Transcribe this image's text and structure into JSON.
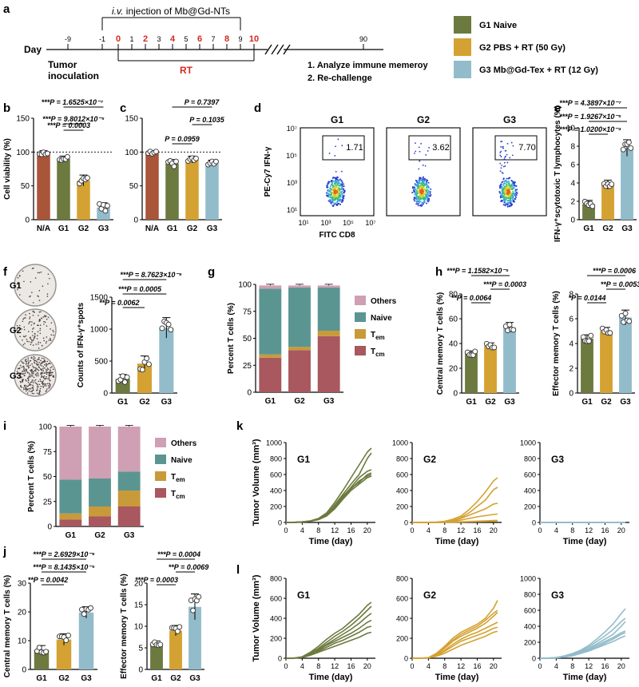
{
  "colors": {
    "g1": "#6c7a3f",
    "g2": "#d4a232",
    "g3": "#93bccb",
    "na": "#a8553a",
    "others": "#cf9fb3",
    "naive": "#5b9591",
    "tem": "#c89a3a",
    "tcm": "#a8585e",
    "red": "#d42a20"
  },
  "panel_a": {
    "letter": "a",
    "day_label": "Day",
    "inj_italic": "i.v.",
    "inj_text": " injection of Mb@Gd-NTs",
    "rt_label": "RT",
    "days": [
      {
        "label": "-9",
        "red": false
      },
      {
        "label": "-1",
        "red": false
      },
      {
        "label": "0",
        "red": true
      },
      {
        "label": "1",
        "red": false
      },
      {
        "label": "2",
        "red": true
      },
      {
        "label": "3",
        "red": false
      },
      {
        "label": "4",
        "red": true
      },
      {
        "label": "5",
        "red": false
      },
      {
        "label": "6",
        "red": true
      },
      {
        "label": "7",
        "red": false
      },
      {
        "label": "8",
        "red": true
      },
      {
        "label": "9",
        "red": false
      },
      {
        "label": "10",
        "red": true
      },
      {
        "label": "90",
        "red": false
      }
    ],
    "tumor_line1": "Tumor",
    "tumor_line2": "inoculation",
    "step1": "1. Analyze immune memeroy",
    "step2": "2. Re-challenge"
  },
  "legend": [
    {
      "label": "G1  Naive",
      "color": "#6c7a3f"
    },
    {
      "label": "G2  PBS + RT (50 Gy)",
      "color": "#d4a232"
    },
    {
      "label": "G3  Mb@Gd-Tex + RT (12 Gy)",
      "color": "#93bccb"
    }
  ],
  "flow_d": {
    "letter": "d",
    "ylabel": "PE-Cy7 IFN-γ",
    "xlabel": "FITC CD8",
    "yticks": [
      "10⁷",
      "10⁵",
      "10³",
      "10¹"
    ],
    "xticks": [
      "10¹",
      "10³",
      "10⁵",
      "10⁷"
    ],
    "plots": [
      {
        "name": "G1",
        "value": "1.71"
      },
      {
        "name": "G2",
        "value": "3.62"
      },
      {
        "name": "G3",
        "value": "7.70"
      }
    ]
  },
  "elispot_f": {
    "labels": [
      "G1",
      "G2",
      "G3"
    ]
  },
  "chart_data": [
    {
      "id": "b",
      "type": "bar",
      "ylabel": "Cell viability (%)",
      "categories": [
        "N/A",
        "G1",
        "G2",
        "G3"
      ],
      "values": [
        99,
        90,
        58,
        18
      ],
      "errors": [
        3,
        4,
        8,
        7
      ],
      "ylim": [
        0,
        150
      ],
      "yticks": [
        0,
        50,
        100,
        150
      ],
      "reference_line": 100,
      "stats": [
        "***P = 1.6525×10⁻⁷",
        "***P = 9.8012×10⁻⁵",
        "***P = 0.0003"
      ]
    },
    {
      "id": "c",
      "type": "bar",
      "ylabel": "",
      "categories": [
        "N/A",
        "G1",
        "G2",
        "G3"
      ],
      "values": [
        99,
        83,
        89,
        84
      ],
      "errors": [
        3,
        6,
        5,
        4
      ],
      "ylim": [
        0,
        150
      ],
      "yticks": [
        0,
        50,
        100,
        150
      ],
      "reference_line": 100,
      "stats": [
        "P = 0.7397",
        "P = 0.1035",
        "P = 0.0959"
      ]
    },
    {
      "id": "e",
      "type": "bar",
      "ylabel": "IFN-γ⁺scytotoxic T lymphocytes (%)",
      "categories": [
        "G1",
        "G2",
        "G3"
      ],
      "values": [
        1.7,
        3.8,
        7.8
      ],
      "errors": [
        0.4,
        0.5,
        0.9
      ],
      "ylim": [
        0,
        10
      ],
      "yticks": [
        0,
        2,
        4,
        6,
        8,
        10
      ],
      "stats": [
        "***P = 4.3897×10⁻⁷",
        "***P = 1.9267×10⁻⁵",
        "***P = 1.0200×10⁻⁴"
      ]
    },
    {
      "id": "f",
      "type": "bar",
      "ylabel": "Counts of IFN-γ⁺spots",
      "categories": [
        "G1",
        "G2",
        "G3"
      ],
      "values": [
        220,
        460,
        1020
      ],
      "errors": [
        70,
        120,
        160
      ],
      "ylim": [
        0,
        1500
      ],
      "yticks": [
        0,
        500,
        1000,
        1500
      ],
      "stats": [
        "***P = 8.7623×10⁻⁶",
        "***P = 0.0005",
        "**P = 0.0062"
      ]
    },
    {
      "id": "g",
      "type": "stacked_bar",
      "ylabel": "Percent T cells (%)",
      "categories": [
        "G1",
        "G2",
        "G3"
      ],
      "ylim": [
        0,
        100
      ],
      "yticks": [
        0,
        25,
        50,
        75,
        100
      ],
      "series": [
        {
          "name": "Tcm",
          "values": [
            32,
            39,
            52
          ]
        },
        {
          "name": "Tem",
          "values": [
            3,
            3,
            5
          ]
        },
        {
          "name": "Naive",
          "values": [
            61,
            55,
            40
          ]
        },
        {
          "name": "Others",
          "values": [
            3,
            2,
            2
          ]
        }
      ],
      "legend": [
        "Others",
        "Naive",
        "T_em",
        "T_cm"
      ]
    },
    {
      "id": "h1",
      "type": "bar",
      "ylabel": "Central memory T cells (%)",
      "categories": [
        "G1",
        "G2",
        "G3"
      ],
      "values": [
        32,
        38,
        53
      ],
      "errors": [
        2,
        2.5,
        4
      ],
      "ylim": [
        0,
        80
      ],
      "yticks": [
        0,
        20,
        40,
        60,
        80
      ],
      "stats": [
        "***P = 1.1582×10⁻⁵",
        "***P = 0.0003",
        "**P = 0.0064"
      ]
    },
    {
      "id": "h2",
      "type": "bar",
      "ylabel": "Effector memory T cells (%)",
      "categories": [
        "G1",
        "G2",
        "G3"
      ],
      "values": [
        4.4,
        5.0,
        6.1
      ],
      "errors": [
        0.3,
        0.3,
        0.6
      ],
      "ylim": [
        0,
        8
      ],
      "yticks": [
        0,
        2,
        4,
        6,
        8
      ],
      "stats": [
        "***P = 0.0006",
        "**P = 0.0053",
        "*P = 0.0144"
      ]
    },
    {
      "id": "i",
      "type": "stacked_bar",
      "ylabel": "Percent T cells (%)",
      "categories": [
        "G1",
        "G2",
        "G3"
      ],
      "ylim": [
        0,
        100
      ],
      "yticks": [
        0,
        25,
        50,
        75,
        100
      ],
      "series": [
        {
          "name": "Tcm",
          "values": [
            7,
            10,
            20
          ]
        },
        {
          "name": "Tem",
          "values": [
            6,
            10,
            16
          ]
        },
        {
          "name": "Naive",
          "values": [
            34,
            28,
            19
          ]
        },
        {
          "name": "Others",
          "values": [
            53,
            52,
            45
          ]
        }
      ],
      "legend": [
        "Others",
        "Naive",
        "T_em",
        "T_cm"
      ]
    },
    {
      "id": "j1",
      "type": "bar",
      "ylabel": "Central memory T cells (%)",
      "categories": [
        "G1",
        "G2",
        "G3"
      ],
      "values": [
        6.8,
        10.4,
        19.8
      ],
      "errors": [
        1.5,
        2,
        2
      ],
      "ylim": [
        0,
        30
      ],
      "yticks": [
        0,
        10,
        20,
        30
      ],
      "stats": [
        "***P = 2.6929×10⁻⁶",
        "***P = 8.1435×10⁻⁵",
        "**P = 0.0042"
      ]
    },
    {
      "id": "j2",
      "type": "bar",
      "ylabel": "Effector memory T cells (%)",
      "categories": [
        "G1",
        "G2",
        "G3"
      ],
      "values": [
        6.0,
        9.0,
        14.5
      ],
      "errors": [
        0.6,
        1.2,
        3
      ],
      "ylim": [
        0,
        20
      ],
      "yticks": [
        0,
        5,
        10,
        15,
        20
      ],
      "stats": [
        "***P = 0.0004",
        "**P = 0.0069",
        "***P = 0.0003"
      ]
    },
    {
      "id": "k",
      "type": "line",
      "ylabel": "Tumor Volume (mm³)",
      "xlabel": "Time (day)",
      "x": [
        0,
        2,
        4,
        6,
        8,
        10,
        12,
        14,
        16,
        18,
        20,
        21
      ],
      "ylim": [
        0,
        1000
      ],
      "yticks": [
        0,
        200,
        400,
        600,
        800,
        1000
      ],
      "xticks": [
        0,
        4,
        8,
        12,
        16,
        20
      ],
      "panels": [
        {
          "name": "G1",
          "series": [
            [
              0,
              2,
              8,
              20,
              50,
              120,
              250,
              400,
              560,
              720,
              880,
              930
            ],
            [
              0,
              2,
              8,
              18,
              45,
              100,
              220,
              350,
              480,
              600,
              800,
              870
            ],
            [
              0,
              1,
              6,
              16,
              40,
              90,
              190,
              320,
              440,
              560,
              640,
              660
            ],
            [
              0,
              2,
              7,
              18,
              42,
              95,
              200,
              330,
              430,
              500,
              600,
              620
            ],
            [
              0,
              1,
              5,
              14,
              35,
              80,
              170,
              290,
              400,
              480,
              560,
              580
            ],
            [
              0,
              1,
              6,
              15,
              38,
              90,
              190,
              310,
              420,
              520,
              580,
              600
            ]
          ]
        },
        {
          "name": "G2",
          "series": [
            [
              0,
              0,
              2,
              5,
              15,
              40,
              80,
              160,
              260,
              380,
              520,
              560
            ],
            [
              0,
              0,
              1,
              4,
              10,
              25,
              60,
              120,
              200,
              280,
              410,
              440
            ],
            [
              0,
              0,
              1,
              3,
              8,
              20,
              50,
              90,
              130,
              170,
              230,
              240
            ],
            [
              0,
              0,
              1,
              2,
              6,
              12,
              30,
              50,
              70,
              85,
              100,
              105
            ],
            [
              0,
              0,
              0,
              1,
              2,
              4,
              8,
              12,
              16,
              20,
              25,
              26
            ],
            [
              0,
              0,
              0,
              1,
              2,
              3,
              5,
              8,
              10,
              12,
              14,
              15
            ]
          ]
        },
        {
          "name": "G3",
          "series": [
            [
              0,
              0,
              0,
              0,
              0,
              0,
              0,
              0,
              0,
              0,
              0,
              0
            ],
            [
              0,
              0,
              0,
              0,
              0,
              0,
              0,
              0,
              0,
              0,
              0,
              0
            ],
            [
              0,
              0,
              0,
              0,
              0,
              0,
              0,
              0,
              0,
              0,
              0,
              0
            ],
            [
              0,
              0,
              0,
              0,
              0,
              0,
              0,
              0,
              0,
              0,
              0,
              0
            ],
            [
              0,
              0,
              0,
              0,
              0,
              0,
              0,
              0,
              0,
              0,
              0,
              0
            ],
            [
              0,
              0,
              0,
              0,
              0,
              0,
              0,
              0,
              0,
              0,
              0,
              0
            ]
          ]
        }
      ]
    },
    {
      "id": "l",
      "type": "line",
      "ylabel": "Tumor Volume (mm³)",
      "xlabel": "Time (day)",
      "x": [
        0,
        2,
        4,
        6,
        8,
        10,
        12,
        14,
        16,
        18,
        20,
        21
      ],
      "xticks": [
        0,
        4,
        8,
        12,
        16,
        20
      ],
      "panels": [
        {
          "name": "G1",
          "ylim": [
            0,
            800
          ],
          "yticks": [
            0,
            200,
            400,
            600,
            800
          ],
          "series": [
            [
              0,
              2,
              15,
              60,
              120,
              190,
              250,
              300,
              370,
              440,
              530,
              560
            ],
            [
              0,
              2,
              12,
              50,
              100,
              160,
              220,
              270,
              330,
              400,
              480,
              520
            ],
            [
              0,
              1,
              10,
              45,
              90,
              140,
              190,
              240,
              290,
              350,
              420,
              450
            ],
            [
              0,
              1,
              10,
              40,
              80,
              130,
              170,
              210,
              250,
              300,
              360,
              380
            ],
            [
              0,
              1,
              8,
              35,
              70,
              110,
              150,
              180,
              220,
              260,
              310,
              320
            ],
            [
              0,
              1,
              7,
              30,
              60,
              90,
              120,
              150,
              180,
              210,
              250,
              260
            ]
          ]
        },
        {
          "name": "G2",
          "ylim": [
            0,
            800
          ],
          "yticks": [
            0,
            200,
            400,
            600,
            800
          ],
          "series": [
            [
              0,
              1,
              5,
              50,
              120,
              200,
              260,
              300,
              340,
              400,
              500,
              580
            ],
            [
              0,
              1,
              5,
              45,
              110,
              180,
              240,
              280,
              320,
              380,
              450,
              480
            ],
            [
              0,
              1,
              4,
              40,
              100,
              170,
              220,
              260,
              300,
              350,
              420,
              460
            ],
            [
              0,
              1,
              4,
              30,
              80,
              140,
              190,
              230,
              260,
              300,
              340,
              360
            ],
            [
              0,
              1,
              3,
              25,
              70,
              120,
              170,
              200,
              230,
              260,
              300,
              310
            ],
            [
              0,
              1,
              3,
              20,
              50,
              90,
              130,
              160,
              190,
              220,
              260,
              270
            ]
          ]
        },
        {
          "name": "G3",
          "ylim": [
            0,
            1000
          ],
          "yticks": [
            0,
            200,
            400,
            600,
            800,
            1000
          ],
          "series": [
            [
              0,
              2,
              10,
              30,
              60,
              100,
              160,
              240,
              330,
              430,
              560,
              620
            ],
            [
              0,
              2,
              8,
              25,
              50,
              90,
              140,
              210,
              280,
              360,
              460,
              500
            ],
            [
              0,
              2,
              8,
              22,
              45,
              80,
              120,
              180,
              240,
              300,
              400,
              460
            ],
            [
              0,
              1,
              6,
              20,
              40,
              70,
              110,
              160,
              210,
              260,
              320,
              340
            ],
            [
              0,
              1,
              5,
              18,
              35,
              65,
              100,
              140,
              190,
              240,
              300,
              320
            ],
            [
              0,
              1,
              5,
              15,
              30,
              60,
              90,
              130,
              170,
              210,
              260,
              280
            ]
          ]
        }
      ]
    }
  ]
}
